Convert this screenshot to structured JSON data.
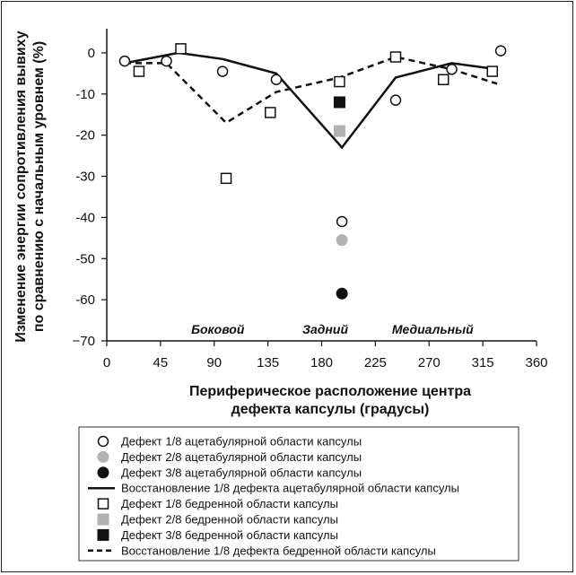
{
  "chart_data": {
    "type": "scatter",
    "title": "",
    "xlabel_lines": [
      "Периферическое расположение центра",
      "дефекта капсулы (градусы)"
    ],
    "ylabel_lines": [
      "Изменение энергии сопротивления вывиху",
      "по сравнению с начальным уровнем (%)"
    ],
    "xlim": [
      0,
      360
    ],
    "ylim": [
      -70,
      5
    ],
    "x_ticks": [
      "0",
      "45",
      "90",
      "135",
      "180",
      "225",
      "270",
      "315",
      "360"
    ],
    "y_ticks": [
      "0",
      "-10",
      "-20",
      "-30",
      "-40",
      "-50",
      "-60",
      "−70"
    ],
    "grid": false,
    "legend_position": "bottom",
    "region_labels": [
      {
        "text": "Боковой",
        "x": 90
      },
      {
        "text": "Задний",
        "x": 180
      },
      {
        "text": "Медиальный",
        "x": 270
      }
    ],
    "series": [
      {
        "name": "Дефект 1/8 ацетабулярной области капсулы",
        "marker": "circle-open",
        "color": "#111111",
        "x": [
          15,
          50,
          97,
          142,
          197,
          242,
          289,
          330
        ],
        "y": [
          -2,
          -2,
          -4.5,
          -6.5,
          -41,
          -11.5,
          -4,
          0.5
        ]
      },
      {
        "name": "Дефект 2/8 ацетабулярной области капсулы",
        "marker": "circle-filled",
        "color": "#b3b3b3",
        "x": [
          197
        ],
        "y": [
          -45.5
        ]
      },
      {
        "name": "Дефект 3/8 ацетабулярной области капсулы",
        "marker": "circle-filled",
        "color": "#111111",
        "x": [
          197
        ],
        "y": [
          -58.5
        ]
      },
      {
        "name": "Восстановление 1/8 дефекта ацетабулярной области капсулы",
        "marker": "line-solid",
        "color": "#111111",
        "x": [
          15,
          60,
          97,
          142,
          197,
          242,
          289,
          327
        ],
        "y": [
          -2.5,
          0,
          -1.5,
          -5,
          -23,
          -6,
          -2.5,
          -4
        ]
      },
      {
        "name": "Дефект 1/8 бедренной области капсулы",
        "marker": "square-open",
        "color": "#111111",
        "x": [
          27,
          62,
          100,
          137,
          195,
          242,
          282,
          323
        ],
        "y": [
          -4.5,
          1,
          -30.5,
          -14.5,
          -7,
          -1,
          -6.5,
          -4.5
        ]
      },
      {
        "name": "Дефект 2/8 бедренной области капсулы",
        "marker": "square-filled",
        "color": "#b3b3b3",
        "x": [
          195
        ],
        "y": [
          -19
        ]
      },
      {
        "name": "Дефект 3/8 бедренной области капсулы",
        "marker": "square-filled",
        "color": "#111111",
        "x": [
          195
        ],
        "y": [
          -12
        ]
      },
      {
        "name": "Восстановление 1/8 дефекта бедренной области капсулы",
        "marker": "line-dashed",
        "color": "#111111",
        "x": [
          15,
          50,
          100,
          142,
          195,
          242,
          289,
          327
        ],
        "y": [
          -2.5,
          -2.5,
          -17,
          -9.5,
          -6,
          -1,
          -4,
          -7.5
        ]
      }
    ]
  }
}
